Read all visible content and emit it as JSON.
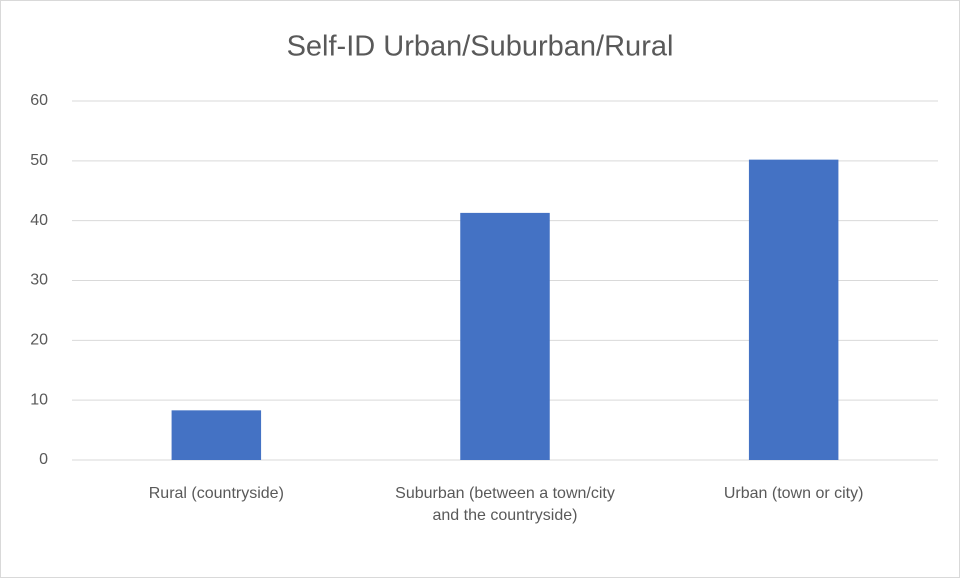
{
  "chart_data": {
    "type": "bar",
    "title": "Self-ID Urban/Suburban/Rural",
    "categories": [
      "Rural (countryside)",
      "Suburban (between a town/city and the countryside)",
      "Urban (town or city)"
    ],
    "values": [
      8.3,
      41.3,
      50.2
    ],
    "color": "#4472c4",
    "ylim": [
      0,
      60
    ],
    "yticks": [
      0,
      10,
      20,
      30,
      40,
      50,
      60
    ],
    "grid": true
  }
}
